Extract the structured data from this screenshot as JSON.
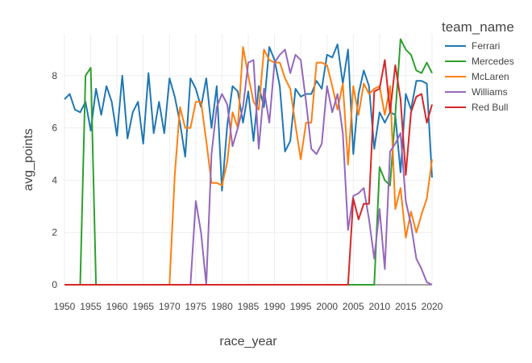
{
  "chart_data": {
    "type": "line",
    "xlabel": "race_year",
    "ylabel": "avg_points",
    "xlim": [
      1950,
      2020
    ],
    "ylim": [
      0,
      9.6
    ],
    "x_ticks": [
      1950,
      1955,
      1960,
      1965,
      1970,
      1975,
      1980,
      1985,
      1990,
      1995,
      2000,
      2005,
      2010,
      2015,
      2020
    ],
    "y_ticks": [
      0,
      2,
      4,
      6,
      8
    ],
    "legend": {
      "title": "team_name",
      "position": "right"
    },
    "grid": true,
    "series": [
      {
        "name": "Ferrari",
        "color": "#1f77b4",
        "x": [
          1950,
          1951,
          1952,
          1953,
          1954,
          1955,
          1956,
          1957,
          1958,
          1959,
          1960,
          1961,
          1962,
          1963,
          1964,
          1965,
          1966,
          1967,
          1968,
          1969,
          1970,
          1971,
          1972,
          1973,
          1974,
          1975,
          1976,
          1977,
          1978,
          1979,
          1980,
          1981,
          1982,
          1983,
          1984,
          1985,
          1986,
          1987,
          1988,
          1989,
          1990,
          1991,
          1992,
          1993,
          1994,
          1995,
          1996,
          1997,
          1998,
          1999,
          2000,
          2001,
          2002,
          2003,
          2004,
          2005,
          2006,
          2007,
          2008,
          2009,
          2010,
          2011,
          2012,
          2013,
          2014,
          2015,
          2016,
          2017,
          2018,
          2019,
          2020
        ],
        "y": [
          7.1,
          7.3,
          6.7,
          6.6,
          7.0,
          5.9,
          7.5,
          6.5,
          7.6,
          7.0,
          5.7,
          8.0,
          5.6,
          6.6,
          7.0,
          5.4,
          8.1,
          5.8,
          7.0,
          5.8,
          7.9,
          7.2,
          6.2,
          4.9,
          7.9,
          7.5,
          6.8,
          7.9,
          6.0,
          7.6,
          3.6,
          6.1,
          7.6,
          7.4,
          6.2,
          7.4,
          5.5,
          7.6,
          6.8,
          9.1,
          8.6,
          7.6,
          5.1,
          5.5,
          7.5,
          7.2,
          7.3,
          7.3,
          7.8,
          7.5,
          8.8,
          8.7,
          9.2,
          7.7,
          9.0,
          5.0,
          7.3,
          8.2,
          7.6,
          5.2,
          6.6,
          6.2,
          6.6,
          6.5,
          4.3,
          7.3,
          6.7,
          7.8,
          7.8,
          7.7,
          4.1
        ]
      },
      {
        "name": "Mercedes",
        "color": "#2ca02c",
        "x": [
          1950,
          1953,
          1954,
          1955,
          1956,
          1957,
          2008,
          2009,
          2010,
          2011,
          2012,
          2013,
          2014,
          2015,
          2016,
          2017,
          2018,
          2019,
          2020
        ],
        "y": [
          0,
          0,
          8.0,
          8.3,
          0,
          0,
          0,
          0,
          4.5,
          4.0,
          3.8,
          6.5,
          9.4,
          9.0,
          8.8,
          8.2,
          8.1,
          8.5,
          8.1
        ]
      },
      {
        "name": "McLaren",
        "color": "#ff7f0e",
        "x": [
          1950,
          1970,
          1971,
          1972,
          1973,
          1974,
          1975,
          1976,
          1977,
          1978,
          1979,
          1980,
          1981,
          1982,
          1983,
          1984,
          1985,
          1986,
          1987,
          1988,
          1989,
          1990,
          1991,
          1992,
          1993,
          1994,
          1995,
          1996,
          1997,
          1998,
          1999,
          2000,
          2001,
          2002,
          2003,
          2004,
          2005,
          2006,
          2007,
          2008,
          2009,
          2010,
          2011,
          2012,
          2013,
          2014,
          2015,
          2016,
          2017,
          2018,
          2019,
          2020
        ],
        "y": [
          0,
          0,
          4.2,
          6.8,
          6.0,
          6.0,
          7.0,
          7.0,
          5.5,
          3.9,
          3.9,
          3.8,
          4.7,
          6.6,
          6.0,
          9.1,
          8.0,
          7.0,
          6.7,
          9.0,
          8.6,
          8.5,
          8.5,
          7.9,
          7.5,
          6.1,
          4.8,
          6.2,
          6.2,
          8.5,
          8.5,
          8.4,
          7.6,
          6.7,
          7.7,
          4.6,
          7.6,
          6.5,
          7.7,
          7.3,
          7.5,
          7.6,
          6.5,
          7.6,
          2.9,
          3.7,
          1.8,
          2.8,
          2.0,
          2.7,
          3.3,
          4.8
        ]
      },
      {
        "name": "Williams",
        "color": "#9467bd",
        "x": [
          1950,
          1974,
          1975,
          1976,
          1977,
          1978,
          1979,
          1980,
          1981,
          1982,
          1983,
          1984,
          1985,
          1986,
          1987,
          1988,
          1989,
          1990,
          1991,
          1992,
          1993,
          1994,
          1995,
          1996,
          1997,
          1998,
          1999,
          2000,
          2001,
          2002,
          2003,
          2004,
          2005,
          2006,
          2007,
          2008,
          2009,
          2010,
          2011,
          2012,
          2013,
          2014,
          2015,
          2016,
          2017,
          2018,
          2019,
          2020
        ],
        "y": [
          0,
          0,
          3.2,
          2.0,
          0,
          5.0,
          6.8,
          7.3,
          6.9,
          5.3,
          6.0,
          6.8,
          8.5,
          8.6,
          5.2,
          7.5,
          6.2,
          8.5,
          8.8,
          9.0,
          8.1,
          8.8,
          8.6,
          7.0,
          5.2,
          5.0,
          5.4,
          7.6,
          6.6,
          7.3,
          5.8,
          2.1,
          3.4,
          3.5,
          3.7,
          2.5,
          1.0,
          2.9,
          0.6,
          5.1,
          5.4,
          5.8,
          3.2,
          2.3,
          1.0,
          0.6,
          0.1,
          0.0
        ]
      },
      {
        "name": "Red Bull",
        "color": "#d62728",
        "x": [
          1950,
          2004,
          2005,
          2006,
          2007,
          2008,
          2009,
          2010,
          2011,
          2012,
          2013,
          2014,
          2015,
          2016,
          2017,
          2018,
          2019,
          2020
        ],
        "y": [
          0,
          0,
          3.3,
          2.5,
          3.1,
          3.1,
          7.4,
          7.5,
          8.6,
          6.6,
          8.4,
          7.1,
          4.2,
          6.6,
          7.2,
          7.3,
          6.2,
          6.9
        ]
      }
    ]
  }
}
